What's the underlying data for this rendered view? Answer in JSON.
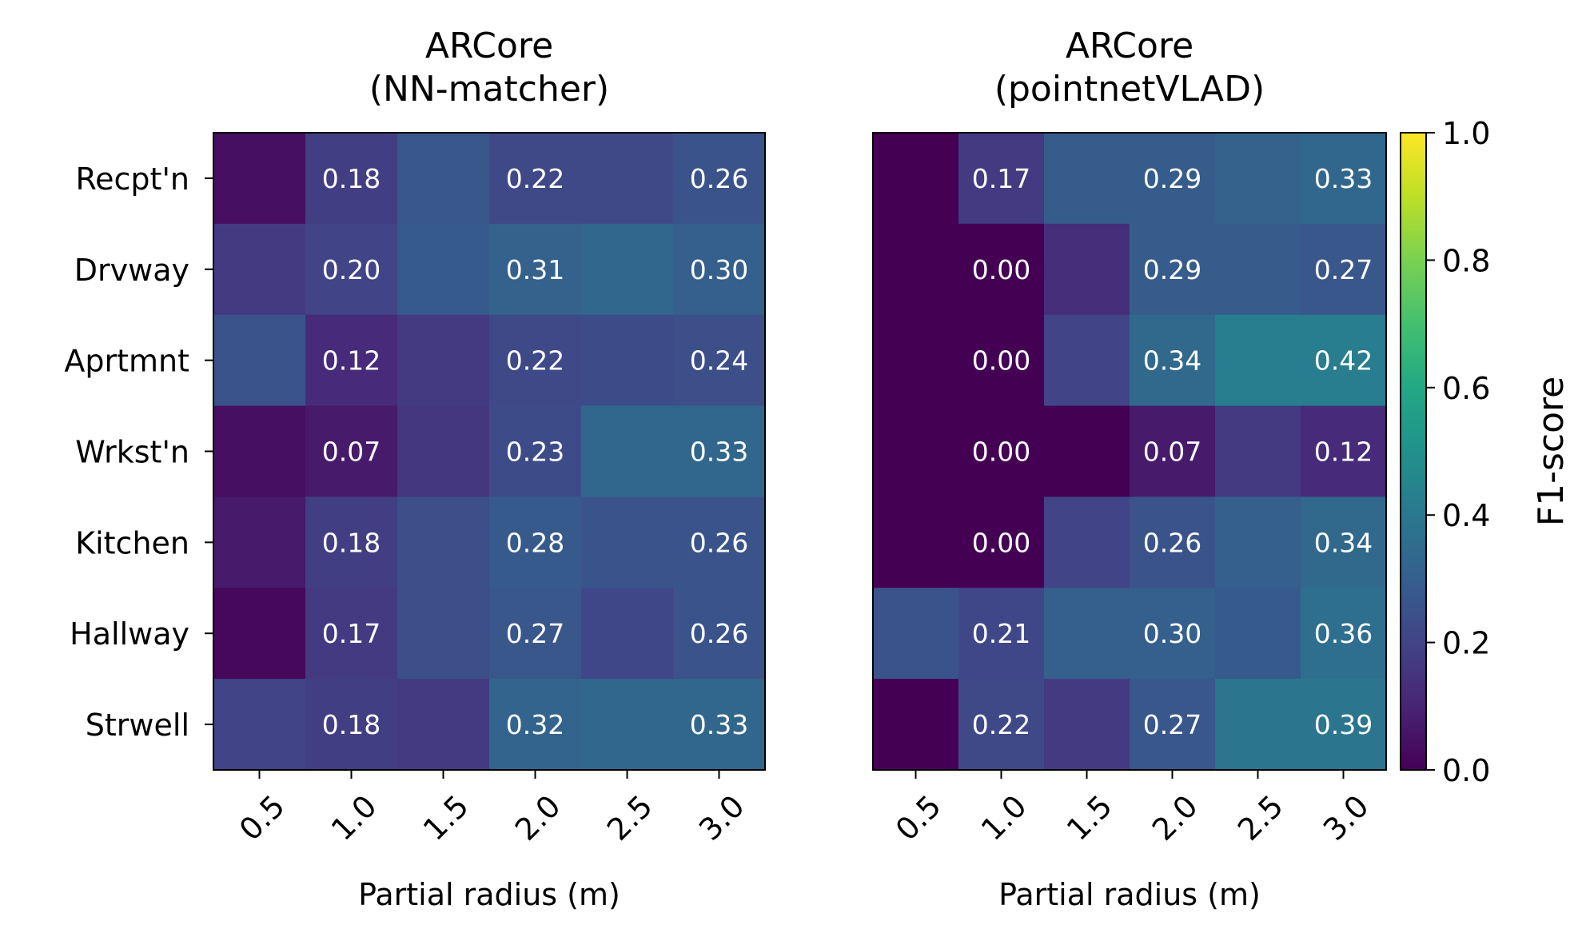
{
  "chart_data": [
    {
      "type": "heatmap",
      "title": "ARCore\n(NN-matcher)",
      "xlabel": "Partial radius (m)",
      "ylabel": "",
      "x": [
        "0.5",
        "1.0",
        "1.5",
        "2.0",
        "2.5",
        "3.0"
      ],
      "y": [
        "Recpt'n",
        "Drvway",
        "Aprtmnt",
        "Wrkst'n",
        "Kitchen",
        "Hallway",
        "Strwell"
      ],
      "values": [
        [
          0.04,
          0.18,
          0.27,
          0.22,
          0.22,
          0.26
        ],
        [
          0.17,
          0.2,
          0.28,
          0.31,
          0.33,
          0.3
        ],
        [
          0.26,
          0.12,
          0.17,
          0.22,
          0.23,
          0.24
        ],
        [
          0.04,
          0.07,
          0.16,
          0.23,
          0.33,
          0.33
        ],
        [
          0.07,
          0.18,
          0.24,
          0.28,
          0.26,
          0.26
        ],
        [
          0.02,
          0.17,
          0.24,
          0.27,
          0.21,
          0.26
        ],
        [
          0.2,
          0.18,
          0.17,
          0.32,
          0.33,
          0.33
        ]
      ],
      "labels": [
        [
          "",
          "0.18",
          "",
          "0.22",
          "",
          "0.26"
        ],
        [
          "",
          "0.20",
          "",
          "0.31",
          "",
          "0.30"
        ],
        [
          "",
          "0.12",
          "",
          "0.22",
          "",
          "0.24"
        ],
        [
          "",
          "0.07",
          "",
          "0.23",
          "",
          "0.33"
        ],
        [
          "",
          "0.18",
          "",
          "0.28",
          "",
          "0.26"
        ],
        [
          "",
          "0.17",
          "",
          "0.27",
          "",
          "0.26"
        ],
        [
          "",
          "0.18",
          "",
          "0.32",
          "",
          "0.33"
        ]
      ],
      "show_y_ticks": true,
      "colormap": "viridis",
      "vmin": 0,
      "vmax": 1
    },
    {
      "type": "heatmap",
      "title": "ARCore\n(pointnetVLAD)",
      "xlabel": "Partial radius (m)",
      "ylabel": "",
      "x": [
        "0.5",
        "1.0",
        "1.5",
        "2.0",
        "2.5",
        "3.0"
      ],
      "y": [
        "Recpt'n",
        "Drvway",
        "Aprtmnt",
        "Wrkst'n",
        "Kitchen",
        "Hallway",
        "Strwell"
      ],
      "values": [
        [
          0.0,
          0.17,
          0.29,
          0.29,
          0.31,
          0.33
        ],
        [
          0.0,
          0.0,
          0.13,
          0.29,
          0.29,
          0.27
        ],
        [
          0.0,
          0.0,
          0.2,
          0.34,
          0.42,
          0.42
        ],
        [
          0.0,
          0.0,
          0.0,
          0.07,
          0.17,
          0.12
        ],
        [
          0.0,
          0.0,
          0.2,
          0.26,
          0.3,
          0.34
        ],
        [
          0.26,
          0.21,
          0.3,
          0.3,
          0.28,
          0.36
        ],
        [
          0.0,
          0.22,
          0.17,
          0.27,
          0.39,
          0.39
        ]
      ],
      "labels": [
        [
          "",
          "0.17",
          "",
          "0.29",
          "",
          "0.33"
        ],
        [
          "",
          "0.00",
          "",
          "0.29",
          "",
          "0.27"
        ],
        [
          "",
          "0.00",
          "",
          "0.34",
          "",
          "0.42"
        ],
        [
          "",
          "0.00",
          "",
          "0.07",
          "",
          "0.12"
        ],
        [
          "",
          "0.00",
          "",
          "0.26",
          "",
          "0.34"
        ],
        [
          "",
          "0.21",
          "",
          "0.30",
          "",
          "0.36"
        ],
        [
          "",
          "0.22",
          "",
          "0.27",
          "",
          "0.39"
        ]
      ],
      "show_y_ticks": false,
      "colormap": "viridis",
      "vmin": 0,
      "vmax": 1
    }
  ],
  "colorbar": {
    "label": "F1-score",
    "ticks": [
      0.0,
      0.2,
      0.4,
      0.6,
      0.8,
      1.0
    ],
    "tick_labels": [
      "0.0",
      "0.2",
      "0.4",
      "0.6",
      "0.8",
      "1.0"
    ],
    "vmin": 0,
    "vmax": 1
  }
}
